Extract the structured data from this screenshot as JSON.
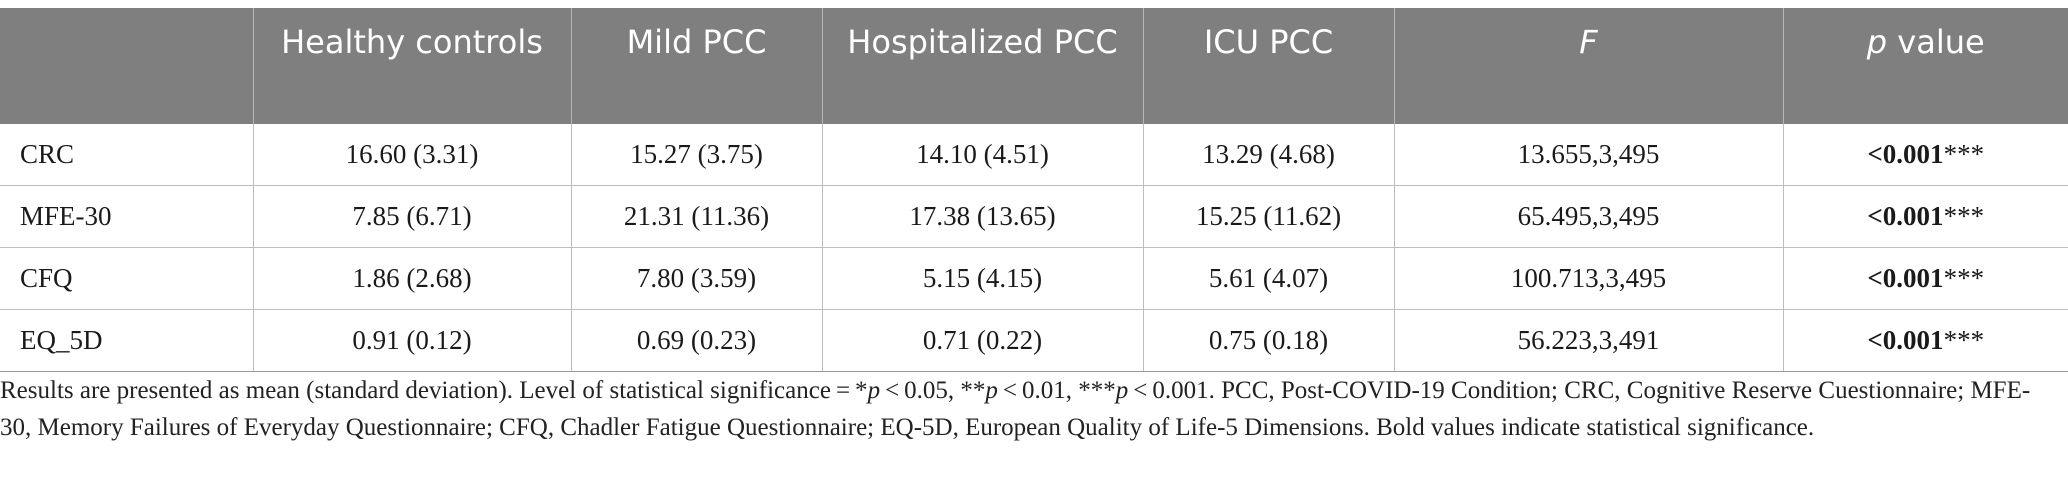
{
  "table": {
    "headers": [
      {
        "text": "",
        "italic_part": "",
        "rest": ""
      },
      {
        "text": "Healthy controls"
      },
      {
        "text": "Mild PCC"
      },
      {
        "text": "Hospitalized PCC"
      },
      {
        "text": "ICU PCC"
      },
      {
        "italic_part": "F",
        "rest": ""
      },
      {
        "italic_part": "p",
        "rest": " value"
      }
    ],
    "rows": [
      {
        "label": "CRC",
        "healthy": "16.60 (3.31)",
        "mild": "15.27 (3.75)",
        "hosp": "14.10 (4.51)",
        "icu": "13.29 (4.68)",
        "f": "13.655,3,495",
        "p_bold": "<0.001",
        "p_stars": "***"
      },
      {
        "label": "MFE-30",
        "healthy": "7.85 (6.71)",
        "mild": "21.31 (11.36)",
        "hosp": "17.38 (13.65)",
        "icu": "15.25 (11.62)",
        "f": "65.495,3,495",
        "p_bold": "<0.001",
        "p_stars": "***"
      },
      {
        "label": "CFQ",
        "healthy": "1.86 (2.68)",
        "mild": "7.80 (3.59)",
        "hosp": "5.15 (4.15)",
        "icu": "5.61 (4.07)",
        "f": "100.713,3,495",
        "p_bold": "<0.001",
        "p_stars": "***"
      },
      {
        "label": "EQ_5D",
        "healthy": "0.91 (0.12)",
        "mild": "0.69 (0.23)",
        "hosp": "0.71 (0.22)",
        "icu": "0.75 (0.18)",
        "f": "56.223,3,491",
        "p_bold": "<0.001",
        "p_stars": "***"
      }
    ]
  },
  "footnote": {
    "part1": "Results are presented as mean (standard deviation). Level of statistical significance = *",
    "p1": "p",
    "part2": " < 0.05, **",
    "p2": "p",
    "part3": " < 0.01, ***",
    "p3": "p",
    "part4": " < 0.001. PCC, Post-COVID-19 Condition; CRC, Cognitive Reserve Cuestionnaire; MFE-30, Memory Failures of Everyday Questionnaire; CFQ, Chadler Fatigue Questionnaire; EQ-5D, European Quality of Life-5 Dimensions. Bold values indicate statistical significance."
  },
  "colors": {
    "header_bg": "#7f7f7f",
    "header_text": "#ffffff",
    "grid": "#bdbdbd"
  }
}
